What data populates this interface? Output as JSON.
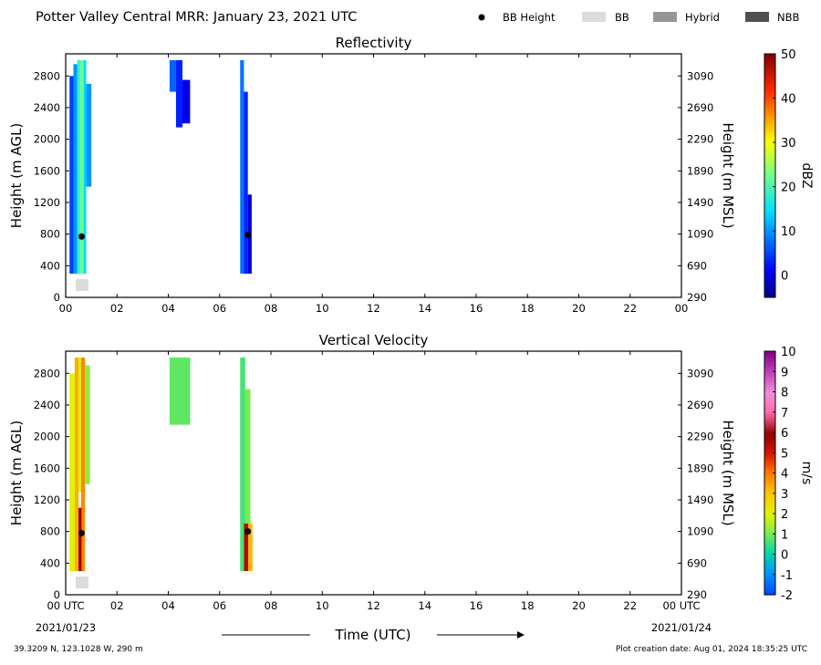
{
  "header": {
    "title": "Potter Valley Central MRR:  January 23, 2021 UTC",
    "legend": [
      {
        "label": "BB Height",
        "kind": "dot",
        "color": "#000000"
      },
      {
        "label": "BB",
        "kind": "box",
        "color": "#dcdcdc"
      },
      {
        "label": "Hybrid",
        "kind": "box",
        "color": "#969696"
      },
      {
        "label": "NBB",
        "kind": "box",
        "color": "#505050"
      }
    ]
  },
  "footer": {
    "location": "39.3209 N, 123.1028 W, 290 m",
    "creation": "Plot creation date: Aug 01, 2024 18:35:25 UTC"
  },
  "x_axis": {
    "label": "Time (UTC)",
    "ticks": [
      0,
      2,
      4,
      6,
      8,
      10,
      12,
      14,
      16,
      18,
      20,
      22,
      24
    ],
    "top_tick_labels": [
      "00",
      "02",
      "04",
      "06",
      "08",
      "10",
      "12",
      "14",
      "16",
      "18",
      "20",
      "22",
      "00"
    ],
    "bottom_tick_labels": [
      "00 UTC",
      "02",
      "04",
      "06",
      "08",
      "10",
      "12",
      "14",
      "16",
      "18",
      "20",
      "22",
      "00 UTC"
    ],
    "start_date": "2021/01/23",
    "end_date": "2021/01/24"
  },
  "chart_data": [
    {
      "type": "heatmap",
      "title": "Reflectivity",
      "xlabel": "",
      "ylabel": "Height (m AGL)",
      "ylabel_right": "Height (m MSL)",
      "xlim": [
        0,
        24
      ],
      "ylim": [
        0,
        3080
      ],
      "y_ticks": [
        0,
        400,
        800,
        1200,
        1600,
        2000,
        2400,
        2800
      ],
      "y_ticks_right": [
        290,
        690,
        1090,
        1490,
        1890,
        2290,
        2690,
        3090
      ],
      "colorbar": {
        "label": "dBZ",
        "min": -5,
        "max": 50,
        "ticks": [
          0,
          10,
          20,
          30,
          40,
          50
        ],
        "colormap": "jet"
      },
      "echoes": [
        {
          "t_start": 0.15,
          "t_end": 0.35,
          "z_bottom": 300,
          "z_top": 2800,
          "value": 5
        },
        {
          "t_start": 0.3,
          "t_end": 0.45,
          "z_bottom": 300,
          "z_top": 2950,
          "value": 10
        },
        {
          "t_start": 0.45,
          "t_end": 0.55,
          "z_bottom": 300,
          "z_top": 3000,
          "value": 18
        },
        {
          "t_start": 0.55,
          "t_end": 0.7,
          "z_bottom": 300,
          "z_top": 3000,
          "value": 22
        },
        {
          "t_start": 0.7,
          "t_end": 0.8,
          "z_bottom": 300,
          "z_top": 3000,
          "value": 14
        },
        {
          "t_start": 0.8,
          "t_end": 1.0,
          "z_bottom": 1400,
          "z_top": 2700,
          "value": 10
        },
        {
          "t_start": 4.05,
          "t_end": 4.3,
          "z_bottom": 2600,
          "z_top": 3000,
          "value": 7
        },
        {
          "t_start": 4.3,
          "t_end": 4.55,
          "z_bottom": 2150,
          "z_top": 3000,
          "value": 3
        },
        {
          "t_start": 4.55,
          "t_end": 4.85,
          "z_bottom": 2200,
          "z_top": 2750,
          "value": 0
        },
        {
          "t_start": 6.8,
          "t_end": 6.95,
          "z_bottom": 300,
          "z_top": 3000,
          "value": 8
        },
        {
          "t_start": 6.95,
          "t_end": 7.1,
          "z_bottom": 300,
          "z_top": 2600,
          "value": 3
        },
        {
          "t_start": 7.1,
          "t_end": 7.25,
          "z_bottom": 300,
          "z_top": 1300,
          "value": -1
        }
      ],
      "bb_height": [
        {
          "time": 0.62,
          "height": 770
        },
        {
          "time": 7.1,
          "height": 790
        }
      ],
      "bb_type_markers": [
        {
          "t_start": 0.25,
          "t_end": 0.75,
          "type": "BB"
        }
      ]
    },
    {
      "type": "heatmap",
      "title": "Vertical Velocity",
      "xlabel": "Time (UTC)",
      "ylabel": "Height (m AGL)",
      "ylabel_right": "Height (m MSL)",
      "xlim": [
        0,
        24
      ],
      "ylim": [
        0,
        3080
      ],
      "y_ticks": [
        0,
        400,
        800,
        1200,
        1600,
        2000,
        2400,
        2800
      ],
      "y_ticks_right": [
        290,
        690,
        1090,
        1490,
        1890,
        2290,
        2690,
        3090
      ],
      "colorbar": {
        "label": "m/s",
        "min": -2,
        "max": 10,
        "ticks": [
          -2,
          -1,
          0,
          1,
          2,
          3,
          4,
          5,
          6,
          7,
          8,
          9,
          10
        ],
        "colormap": "velocity"
      },
      "echoes": [
        {
          "t_start": 0.15,
          "t_end": 0.35,
          "z_bottom": 300,
          "z_top": 2800,
          "value": 2
        },
        {
          "t_start": 0.35,
          "t_end": 0.5,
          "z_bottom": 300,
          "z_top": 3000,
          "value": 3.3
        },
        {
          "t_start": 0.5,
          "t_end": 0.6,
          "z_bottom": 1300,
          "z_top": 3000,
          "value": 1.8
        },
        {
          "t_start": 0.6,
          "t_end": 0.75,
          "z_bottom": 300,
          "z_top": 3000,
          "value": 3.8
        },
        {
          "t_start": 0.75,
          "t_end": 0.95,
          "z_bottom": 1400,
          "z_top": 2900,
          "value": 1.2
        },
        {
          "t_start": 0.5,
          "t_end": 0.62,
          "z_bottom": 300,
          "z_top": 1100,
          "value": 5.8
        },
        {
          "t_start": 4.05,
          "t_end": 4.85,
          "z_bottom": 2150,
          "z_top": 3000,
          "value": 0.8
        },
        {
          "t_start": 6.8,
          "t_end": 7.0,
          "z_bottom": 300,
          "z_top": 3000,
          "value": 0.6
        },
        {
          "t_start": 7.0,
          "t_end": 7.2,
          "z_bottom": 900,
          "z_top": 2600,
          "value": 1.0
        },
        {
          "t_start": 6.95,
          "t_end": 7.12,
          "z_bottom": 300,
          "z_top": 900,
          "value": 5.5
        },
        {
          "t_start": 7.12,
          "t_end": 7.28,
          "z_bottom": 300,
          "z_top": 900,
          "value": 3.2
        }
      ],
      "bb_height": [
        {
          "time": 0.62,
          "height": 780
        },
        {
          "time": 7.1,
          "height": 800
        }
      ],
      "bb_type_markers": [
        {
          "t_start": 0.25,
          "t_end": 0.75,
          "type": "BB"
        }
      ]
    }
  ]
}
